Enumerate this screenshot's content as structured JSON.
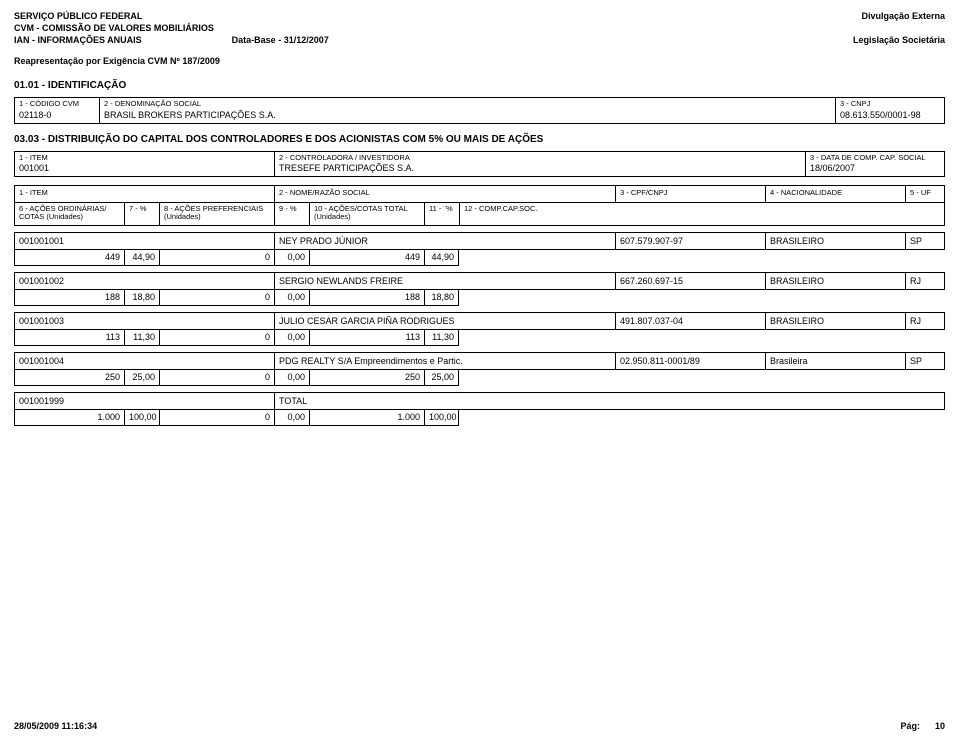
{
  "header": {
    "left1": "SERVIÇO PÚBLICO FEDERAL",
    "left2": "CVM - COMISSÃO DE VALORES MOBILIÁRIOS",
    "left3a": "IAN - INFORMAÇÕES ANUAIS",
    "left3b": "Data-Base - 31/12/2007",
    "right1": "Divulgação Externa",
    "right2": "Legislação Societária",
    "repr": "Reapresentação por Exigência CVM Nº 187/2009"
  },
  "identificacao": {
    "section": "01.01 - IDENTIFICAÇÃO",
    "lbl_codigo": "1 - CÓDIGO CVM",
    "codigo": "02118-0",
    "lbl_denom": "2 - DENOMINAÇÃO SOCIAL",
    "denom": "BRASIL BROKERS PARTICIPAÇÕES S.A.",
    "lbl_cnpj": "3 - CNPJ",
    "cnpj": "08.613.550/0001-98"
  },
  "distrib": {
    "section": "03.03 - DISTRIBUIÇÃO DO CAPITAL DOS CONTROLADORES E DOS ACIONISTAS COM 5% OU MAIS DE AÇÕES",
    "lbl_item": "1 - ITEM",
    "item": "001001",
    "lbl_contr": "2 - CONTROLADORA / INVESTIDORA",
    "contr": "TRESEFE PARTICIPAÇÕES S.A.",
    "lbl_data": "3 - DATA DE COMP. CAP. SOCIAL",
    "data": "18/06/2007"
  },
  "sh_header": {
    "item": "1 - ITEM",
    "nome": "2 - NOME/RAZÃO SOCIAL",
    "cpf": "3 - CPF/CNPJ",
    "nac": "4 - NACIONALIDADE",
    "uf": "5 - UF",
    "sub1": "6 - AÇÕES ORDINÁRIAS/\nCOTAS    (Unidades)",
    "sub2": "7 - %",
    "sub3": "8 - AÇÕES PREFERENCIAIS\n          (Unidades)",
    "sub4": "9 - %",
    "sub5": "10 - AÇÕES/COTAS TOTAL\n          (Unidades)",
    "sub6": "11 - ¨%",
    "sub7": "12 - COMP.CAP.SOC."
  },
  "records": [
    {
      "item": "001001001",
      "nome": "NEY PRADO JÚNIOR",
      "cpf": "607.579.907-97",
      "nac": "BRASILEIRO",
      "uf": "SP",
      "v1": "449",
      "v2": "44,90",
      "v3": "0",
      "v4": "0,00",
      "v5": "449",
      "v6": "44,90"
    },
    {
      "item": "001001002",
      "nome": "SERGIO NEWLANDS FREIRE",
      "cpf": "667.260.697-15",
      "nac": "BRASILEIRO",
      "uf": "RJ",
      "v1": "188",
      "v2": "18,80",
      "v3": "0",
      "v4": "0,00",
      "v5": "188",
      "v6": "18,80"
    },
    {
      "item": "001001003",
      "nome": "JULIO CESAR GARCIA PIÑA RODRIGUES",
      "cpf": "491.807.037-04",
      "nac": "BRASILEIRO",
      "uf": "RJ",
      "v1": "113",
      "v2": "11,30",
      "v3": "0",
      "v4": "0,00",
      "v5": "113",
      "v6": "11,30"
    },
    {
      "item": "001001004",
      "nome": "PDG REALTY S/A Empreendimentos e Partic.",
      "cpf": "02.950.811-0001/89",
      "nac": "Brasileira",
      "uf": "SP",
      "v1": "250",
      "v2": "25,00",
      "v3": "0",
      "v4": "0,00",
      "v5": "250",
      "v6": "25,00"
    },
    {
      "item": "001001999",
      "nome": "TOTAL",
      "cpf": "",
      "nac": "",
      "uf": "",
      "v1": "1.000",
      "v2": "100,00",
      "v3": "0",
      "v4": "0,00",
      "v5": "1.000",
      "v6": "100,00",
      "total": true
    }
  ],
  "footer": {
    "left": "28/05/2009 11:16:34",
    "right_lbl": "Pág:",
    "right_val": "10"
  }
}
